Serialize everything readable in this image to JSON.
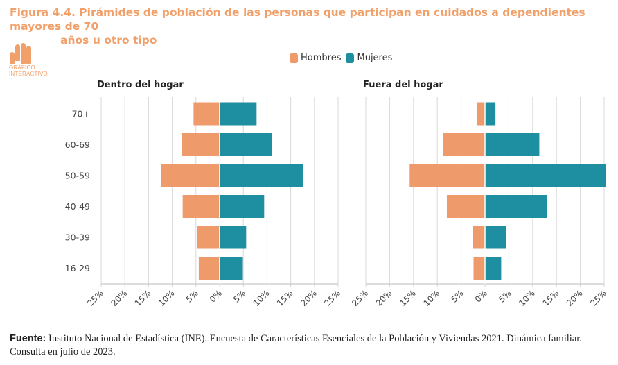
{
  "header": {
    "title_line1": "Figura 4.4. Pirámides de población de las personas que participan en cuidados a dependientes mayores de 70",
    "title_line2": "años u otro tipo"
  },
  "logo": {
    "line1": "GRÁFICO",
    "line2": "INTERACTIVO"
  },
  "footer": {
    "label": "Fuente:",
    "text": " Instituto Nacional de Estadística (INE). Encuesta de Características Esenciales de la Población y Viviendas 2021. Dinámica familiar. Consulta en julio de 2023."
  },
  "colors": {
    "hombres": "#EE9A6B",
    "mujeres": "#1E8FA0",
    "grid": "#d8d8d8",
    "axis": "#bbbbbb",
    "text": "#444444"
  },
  "chart_data": {
    "type": "bar",
    "orientation": "horizontal-pyramid",
    "legend": {
      "position": "top-center",
      "entries": [
        "Hombres",
        "Mujeres"
      ]
    },
    "categories": [
      "70+",
      "60-69",
      "50-59",
      "40-49",
      "30-39",
      "16-29"
    ],
    "tick_labels": [
      "25%",
      "20%",
      "15%",
      "10%",
      "5%",
      "0%",
      "5%",
      "10%",
      "15%",
      "20%",
      "25%"
    ],
    "xlim": [
      -25,
      25
    ],
    "panels": [
      {
        "title": "Dentro del hogar",
        "series": [
          {
            "name": "Hombres",
            "values": [
              5.5,
              8.0,
              12.3,
              7.8,
              4.7,
              4.4
            ]
          },
          {
            "name": "Mujeres",
            "values": [
              7.8,
              11.0,
              17.6,
              9.4,
              5.6,
              4.9
            ]
          }
        ]
      },
      {
        "title": "Fuera del hogar",
        "series": [
          {
            "name": "Hombres",
            "values": [
              1.7,
              8.8,
              15.8,
              8.0,
              2.5,
              2.4
            ]
          },
          {
            "name": "Mujeres",
            "values": [
              2.2,
              11.4,
              25.4,
              13.0,
              4.4,
              3.4
            ]
          }
        ]
      }
    ]
  }
}
